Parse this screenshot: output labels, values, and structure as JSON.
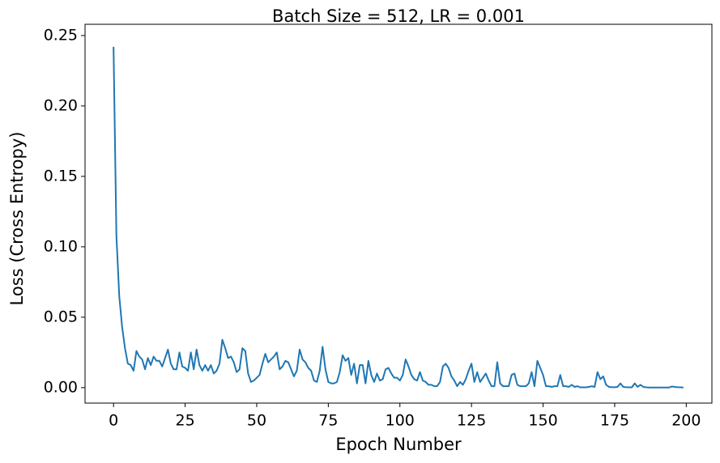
{
  "chart_data": {
    "type": "line",
    "title": "Batch Size = 512, LR = 0.001",
    "xlabel": "Epoch Number",
    "ylabel": "Loss (Cross Entropy)",
    "color": "#1f77b4",
    "xlim": [
      -9.95,
      208.95
    ],
    "ylim": [
      -0.011,
      0.258
    ],
    "xticks": [
      0,
      25,
      50,
      75,
      100,
      125,
      150,
      175,
      200
    ],
    "yticks": [
      {
        "value": 0,
        "label": "0.00"
      },
      0.05,
      {
        "value": 0.1,
        "label": "0.10"
      },
      0.15,
      {
        "value": 0.2,
        "label": "0.20"
      },
      0.25
    ],
    "x": [
      0,
      1,
      2,
      3,
      4,
      5,
      6,
      7,
      8,
      9,
      10,
      11,
      12,
      13,
      14,
      15,
      16,
      17,
      18,
      19,
      20,
      21,
      22,
      23,
      24,
      25,
      26,
      27,
      28,
      29,
      30,
      31,
      32,
      33,
      34,
      35,
      36,
      37,
      38,
      39,
      40,
      41,
      42,
      43,
      44,
      45,
      46,
      47,
      48,
      49,
      50,
      51,
      52,
      53,
      54,
      55,
      56,
      57,
      58,
      59,
      60,
      61,
      62,
      63,
      64,
      65,
      66,
      67,
      68,
      69,
      70,
      71,
      72,
      73,
      74,
      75,
      76,
      77,
      78,
      79,
      80,
      81,
      82,
      83,
      84,
      85,
      86,
      87,
      88,
      89,
      90,
      91,
      92,
      93,
      94,
      95,
      96,
      97,
      98,
      99,
      100,
      101,
      102,
      103,
      104,
      105,
      106,
      107,
      108,
      109,
      110,
      111,
      112,
      113,
      114,
      115,
      116,
      117,
      118,
      119,
      120,
      121,
      122,
      123,
      124,
      125,
      126,
      127,
      128,
      129,
      130,
      131,
      132,
      133,
      134,
      135,
      136,
      137,
      138,
      139,
      140,
      141,
      142,
      143,
      144,
      145,
      146,
      147,
      148,
      149,
      150,
      151,
      152,
      153,
      154,
      155,
      156,
      157,
      158,
      159,
      160,
      161,
      162,
      163,
      164,
      165,
      166,
      167,
      168,
      169,
      170,
      171,
      172,
      173,
      174,
      175,
      176,
      177,
      178,
      179,
      180,
      181,
      182,
      183,
      184,
      185,
      186,
      187,
      188,
      189,
      190,
      191,
      192,
      193,
      194,
      195,
      196,
      197,
      198,
      199
    ],
    "values": [
      0.242,
      0.108,
      0.065,
      0.043,
      0.028,
      0.017,
      0.016,
      0.012,
      0.026,
      0.022,
      0.02,
      0.013,
      0.021,
      0.016,
      0.022,
      0.019,
      0.019,
      0.015,
      0.021,
      0.027,
      0.017,
      0.013,
      0.013,
      0.025,
      0.015,
      0.014,
      0.012,
      0.025,
      0.013,
      0.027,
      0.016,
      0.012,
      0.016,
      0.012,
      0.016,
      0.01,
      0.012,
      0.017,
      0.034,
      0.028,
      0.021,
      0.022,
      0.018,
      0.011,
      0.013,
      0.028,
      0.026,
      0.01,
      0.004,
      0.005,
      0.007,
      0.009,
      0.017,
      0.024,
      0.018,
      0.02,
      0.022,
      0.025,
      0.013,
      0.015,
      0.019,
      0.018,
      0.013,
      0.008,
      0.012,
      0.027,
      0.02,
      0.018,
      0.014,
      0.012,
      0.005,
      0.004,
      0.012,
      0.029,
      0.013,
      0.004,
      0.003,
      0.003,
      0.004,
      0.011,
      0.023,
      0.019,
      0.021,
      0.009,
      0.017,
      0.003,
      0.016,
      0.016,
      0.003,
      0.019,
      0.009,
      0.004,
      0.01,
      0.005,
      0.006,
      0.013,
      0.014,
      0.01,
      0.007,
      0.007,
      0.005,
      0.009,
      0.02,
      0.015,
      0.009,
      0.006,
      0.005,
      0.011,
      0.005,
      0.004,
      0.002,
      0.002,
      0.001,
      0.001,
      0.004,
      0.015,
      0.017,
      0.014,
      0.008,
      0.005,
      0.001,
      0.004,
      0.002,
      0.006,
      0.012,
      0.017,
      0.004,
      0.011,
      0.004,
      0.007,
      0.01,
      0.005,
      0.001,
      0.001,
      0.018,
      0.003,
      0.001,
      0.001,
      0.001,
      0.009,
      0.01,
      0.002,
      0.001,
      0.001,
      0.001,
      0.003,
      0.011,
      0.001,
      0.019,
      0.014,
      0.009,
      0.001,
      0.001,
      0.0005,
      0.001,
      0.001,
      0.009,
      0.001,
      0.001,
      0.0005,
      0.002,
      0.0005,
      0.001,
      0.0002,
      0.0002,
      0.0002,
      0.0005,
      0.001,
      0.0005,
      0.011,
      0.006,
      0.008,
      0.002,
      0.0005,
      0.0003,
      0.0003,
      0.0005,
      0.003,
      0.0005,
      0.0003,
      0.0002,
      0.0002,
      0.003,
      0.0005,
      0.002,
      0.0005,
      0.0002,
      0.0001,
      0.0001,
      0.0001,
      0.0001,
      0.0001,
      0.0001,
      0.0001,
      0.0001,
      0.0008,
      0.0005,
      0.0003,
      0.0002,
      0.0001
    ]
  }
}
